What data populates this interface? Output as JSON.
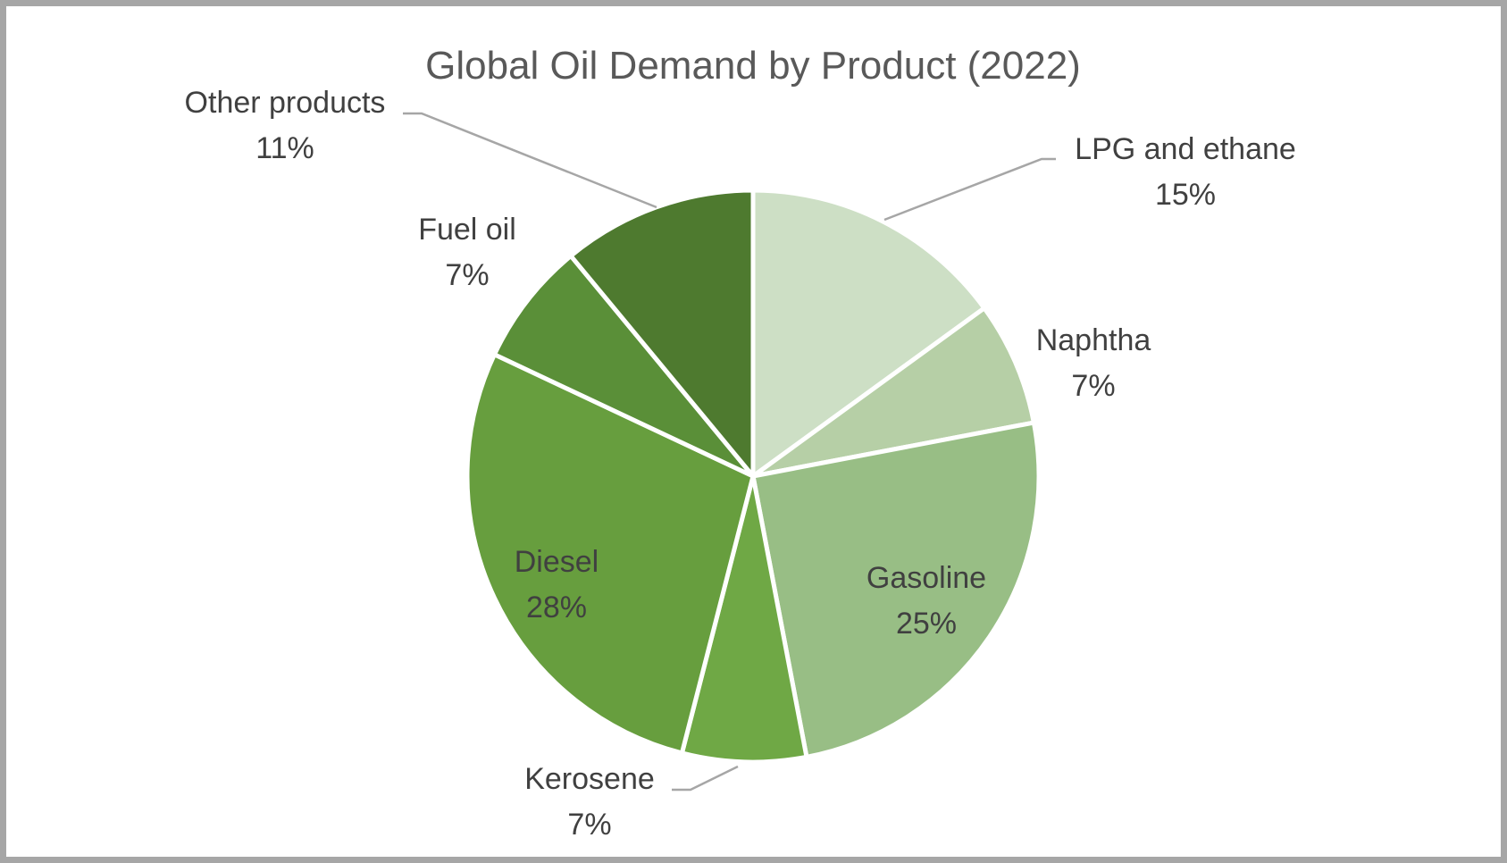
{
  "chart_data": {
    "type": "pie",
    "title": "Global Oil Demand by Product (2022)",
    "start_angle_deg": 0,
    "direction": "clockwise",
    "slices": [
      {
        "name": "LPG and ethane",
        "value": 15,
        "value_label": "15%",
        "color": "#cddfc5"
      },
      {
        "name": "Naphtha",
        "value": 7,
        "value_label": "7%",
        "color": "#b6cfa6"
      },
      {
        "name": "Gasoline",
        "value": 25,
        "value_label": "25%",
        "color": "#98be85"
      },
      {
        "name": "Kerosene",
        "value": 7,
        "value_label": "7%",
        "color": "#6fa845"
      },
      {
        "name": "Diesel",
        "value": 28,
        "value_label": "28%",
        "color": "#679e3e"
      },
      {
        "name": "Fuel oil",
        "value": 7,
        "value_label": "7%",
        "color": "#5a8f38"
      },
      {
        "name": "Other products",
        "value": 11,
        "value_label": "11%",
        "color": "#4e7a2f"
      }
    ],
    "data_labels": "category name and percentage"
  }
}
